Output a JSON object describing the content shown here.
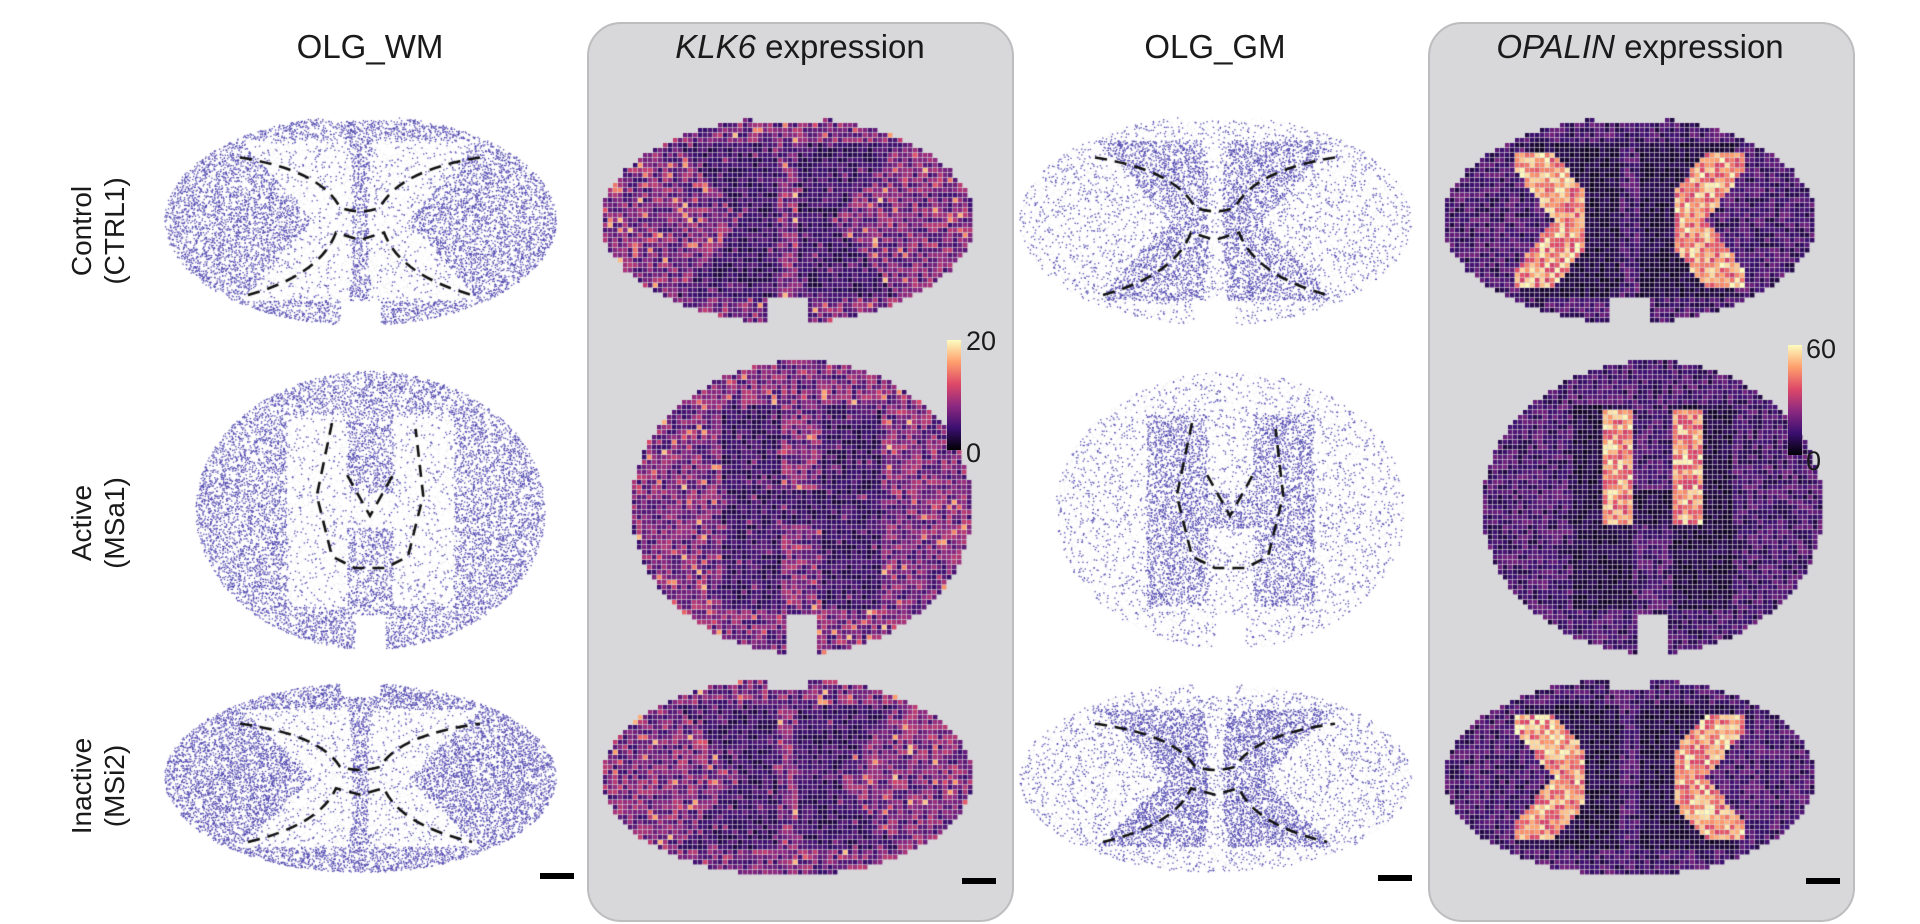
{
  "columns": [
    {
      "title": "OLG_WM",
      "title_italic": "",
      "title_rest": "",
      "style": "celltype",
      "dot_color": "#5149b0"
    },
    {
      "title": "",
      "title_italic": "KLK6",
      "title_rest": " expression",
      "style": "expression",
      "colorbar": {
        "max_label": "20",
        "min_label": "0"
      }
    },
    {
      "title": "OLG_GM",
      "title_italic": "",
      "title_rest": "",
      "style": "celltype",
      "dot_color": "#5149b0"
    },
    {
      "title": "",
      "title_italic": "OPALIN",
      "title_rest": " expression",
      "style": "expression",
      "colorbar": {
        "max_label": "60",
        "min_label": "0"
      }
    }
  ],
  "rows": [
    {
      "label_line1": "Control",
      "label_line2": "(CTRL1)",
      "section_shape": "butterfly-wide"
    },
    {
      "label_line1": "Active",
      "label_line2": "(MSa1)",
      "section_shape": "round"
    },
    {
      "label_line1": "Inactive",
      "label_line2": "(MSi2)",
      "section_shape": "flat-wide"
    }
  ],
  "colormap": [
    "#000004",
    "#3b0f70",
    "#8c2981",
    "#de4968",
    "#fe9f6d",
    "#fcfdbf"
  ],
  "panel_background": "#d8d8da",
  "scale_bar_color": "#000000"
}
